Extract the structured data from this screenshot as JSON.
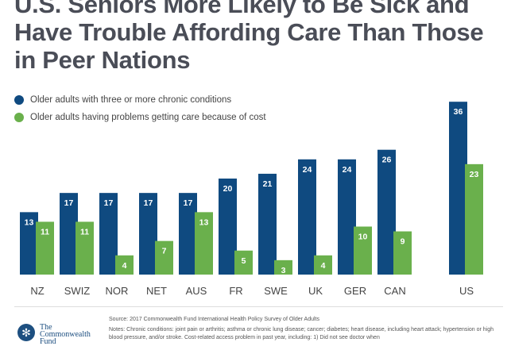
{
  "chart_data": {
    "type": "bar",
    "title": "U.S. Seniors More Likely to Be Sick and Have Trouble Affording Care Than Those in Peer Nations",
    "categories": [
      "NZ",
      "SWIZ",
      "NOR",
      "NET",
      "AUS",
      "FR",
      "SWE",
      "UK",
      "GER",
      "CAN",
      "US"
    ],
    "series": [
      {
        "name": "Older adults with three or more chronic conditions",
        "color": "#0f4a80",
        "values": [
          13,
          17,
          17,
          17,
          17,
          20,
          21,
          24,
          24,
          26,
          36
        ]
      },
      {
        "name": "Older adults having problems getting care because of cost",
        "color": "#6ab04c",
        "values": [
          11,
          11,
          4,
          7,
          13,
          5,
          3,
          4,
          10,
          9,
          23
        ]
      }
    ],
    "xlabel": "",
    "ylabel": "",
    "ylim": [
      0,
      36
    ],
    "grid": false,
    "legend_position": "top-left"
  },
  "footer": {
    "source": "Source: 2017 Commonwealth Fund International Health Policy Survey of Older Adults",
    "notes": "Notes: Chronic conditions: joint pain or arthritis; asthma or chronic lung disease; cancer; diabetes; heart disease, including heart attack; hypertension or high blood pressure, and/or stroke. Cost-related access problem in past year, including: 1) Did not see doctor when",
    "logo": "The Commonwealth Fund"
  }
}
